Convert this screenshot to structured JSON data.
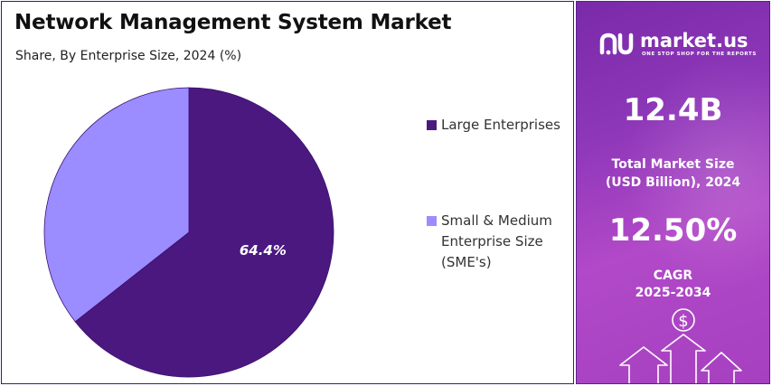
{
  "header": {
    "title": "Network Management System Market",
    "subtitle": "Share, By Enterprise Size, 2024 (%)"
  },
  "chart_data": {
    "type": "pie",
    "title": "Network Management System Market",
    "subtitle": "Share, By Enterprise Size, 2024 (%)",
    "categories": [
      "Large Enterprises",
      "Small & Medium Enterprise Size (SME's)"
    ],
    "values": [
      64.4,
      35.6
    ],
    "data_labels": [
      "64.4%",
      ""
    ],
    "colors": [
      "#4b1880",
      "#9b8cff"
    ],
    "legend_position": "right"
  },
  "legend": {
    "items": [
      {
        "label": "Large Enterprises",
        "color": "#4b1880"
      },
      {
        "label": "Small & Medium Enterprise Size (SME's)",
        "color": "#9b8cff"
      }
    ]
  },
  "panel": {
    "brand_name": "market.us",
    "brand_tagline": "ONE STOP SHOP FOR THE REPORTS",
    "market_size_value": "12.4B",
    "market_size_label": "Total Market Size (USD Billion), 2024",
    "cagr_value": "12.50%",
    "cagr_label": "CAGR",
    "cagr_period": "2025-2034",
    "currency_symbol": "$",
    "icons": [
      "market-us-logo-icon",
      "dollar-icon",
      "growth-arrow-icon"
    ]
  }
}
